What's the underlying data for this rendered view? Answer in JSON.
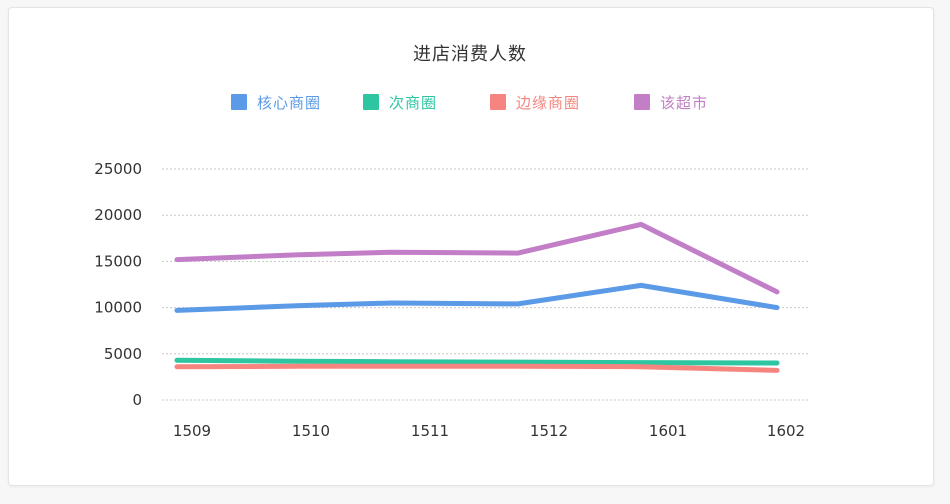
{
  "chart_data": {
    "type": "line",
    "title": "进店消费人数",
    "xlabel": "",
    "ylabel": "",
    "categories": [
      "1509",
      "1510",
      "1511",
      "1512",
      "1601",
      "1602"
    ],
    "ylim": [
      0,
      25000
    ],
    "yticks": [
      0,
      5000,
      10000,
      15000,
      20000,
      25000
    ],
    "grid": true,
    "legend_position": "top",
    "series": [
      {
        "name": "核心商圈",
        "color": "#5b9ae6",
        "values": [
          9700,
          10200,
          10500,
          10400,
          12400,
          10000
        ]
      },
      {
        "name": "次商圈",
        "color": "#2ec5a1",
        "values": [
          4300,
          4200,
          4150,
          4100,
          4050,
          4000
        ]
      },
      {
        "name": "边缘商圈",
        "color": "#f7857f",
        "values": [
          3600,
          3650,
          3650,
          3650,
          3600,
          3200
        ]
      },
      {
        "name": "该超市",
        "color": "#c27ec7",
        "values": [
          15200,
          15700,
          16000,
          15900,
          19000,
          11700
        ]
      }
    ]
  }
}
